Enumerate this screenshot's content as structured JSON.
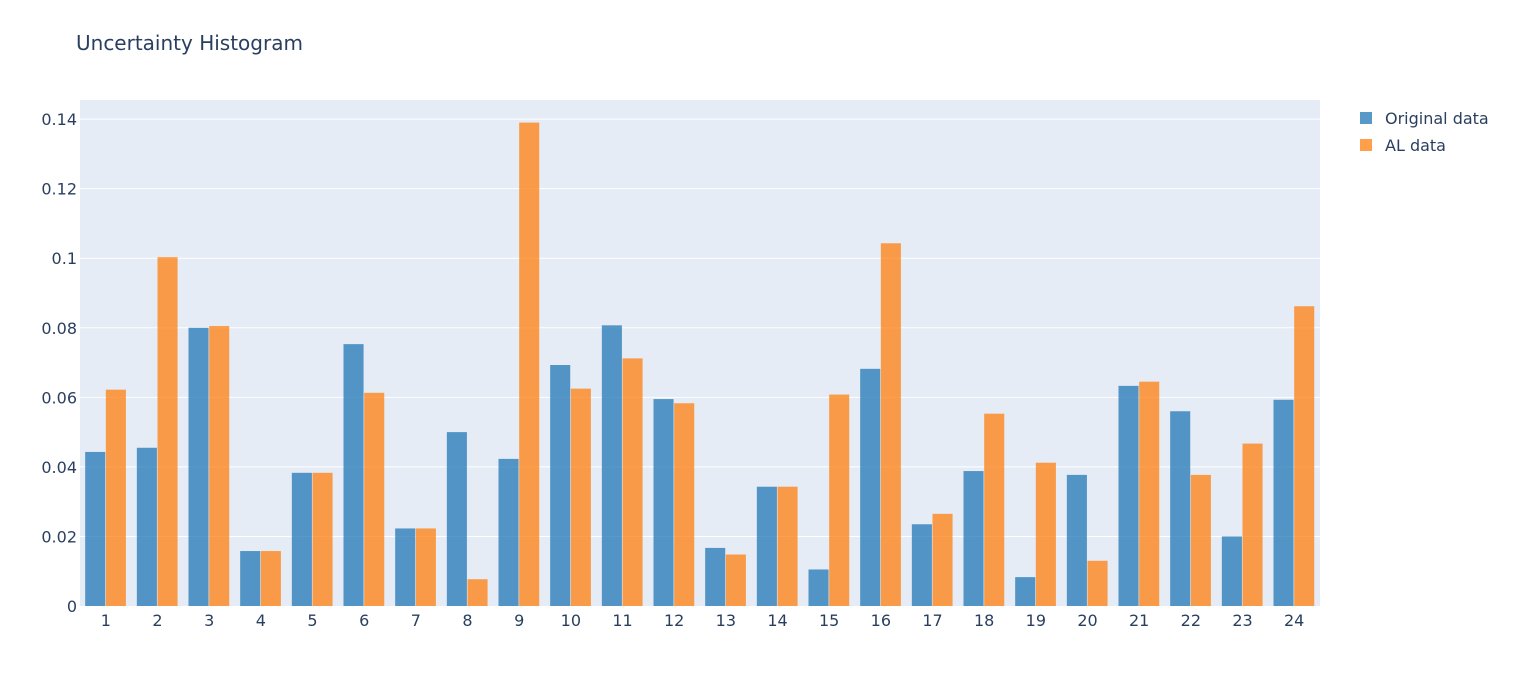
{
  "chart_data": {
    "type": "bar",
    "title": "Uncertainty Histogram",
    "xlabel": "",
    "ylabel": "",
    "categories": [
      "1",
      "2",
      "3",
      "4",
      "5",
      "6",
      "7",
      "8",
      "9",
      "10",
      "11",
      "12",
      "13",
      "14",
      "15",
      "16",
      "17",
      "18",
      "19",
      "20",
      "21",
      "22",
      "23",
      "24"
    ],
    "yticks": [
      "0",
      "0.02",
      "0.04",
      "0.06",
      "0.08",
      "0.1",
      "0.12",
      "0.14"
    ],
    "ylim": [
      0,
      0.1455
    ],
    "grid": true,
    "legend": "top-right",
    "series": [
      {
        "name": "Original data",
        "color": "#1f77b4",
        "values": [
          0.0443,
          0.0455,
          0.08,
          0.0158,
          0.0383,
          0.0753,
          0.0223,
          0.05,
          0.0423,
          0.0693,
          0.0807,
          0.0595,
          0.0167,
          0.0343,
          0.0105,
          0.0682,
          0.0235,
          0.0388,
          0.0083,
          0.0377,
          0.0633,
          0.056,
          0.02,
          0.0593
        ]
      },
      {
        "name": "AL data",
        "color": "#ff7f0e",
        "values": [
          0.0622,
          0.1003,
          0.0805,
          0.0158,
          0.0383,
          0.0613,
          0.0223,
          0.0077,
          0.139,
          0.0625,
          0.0712,
          0.0583,
          0.0148,
          0.0343,
          0.0608,
          0.1043,
          0.0265,
          0.0553,
          0.0412,
          0.013,
          0.0645,
          0.0377,
          0.0467,
          0.0862
        ]
      }
    ]
  }
}
